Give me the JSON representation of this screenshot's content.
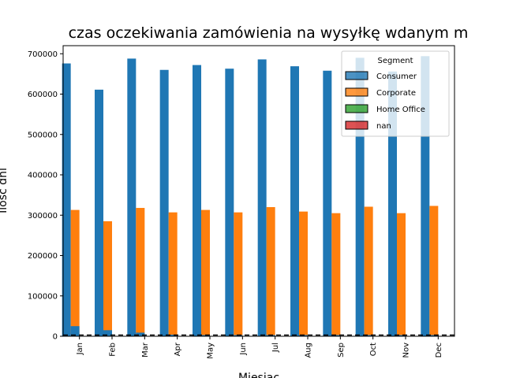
{
  "chart_data": {
    "type": "bar",
    "title": "czas oczekiwania zamówienia na wysyłkę wdanym m",
    "xlabel": "Miesiac",
    "ylabel": "Ilość dni",
    "categories": [
      "Jan",
      "Feb",
      "Mar",
      "Apr",
      "May",
      "Jun",
      "Jul",
      "Aug",
      "Sep",
      "Oct",
      "Nov",
      "Dec"
    ],
    "ylim": [
      0,
      720000
    ],
    "yticks": [
      0,
      100000,
      200000,
      300000,
      400000,
      500000,
      600000,
      700000
    ],
    "ytick_labels": [
      "0",
      "100000",
      "200000",
      "300000",
      "400000",
      "500000",
      "600000",
      "700000"
    ],
    "grid": false,
    "legend": {
      "title": "Segment",
      "placement": "top-right"
    },
    "series": [
      {
        "name": "Consumer",
        "color": "#1f77b4",
        "values": [
          676000,
          611000,
          688000,
          660000,
          672000,
          663000,
          686000,
          669000,
          658000,
          690000,
          656000,
          694000
        ]
      },
      {
        "name": "Corporate",
        "color": "#ff7f0e",
        "values": [
          313000,
          285000,
          318000,
          307000,
          313000,
          307000,
          320000,
          309000,
          305000,
          321000,
          305000,
          323000
        ]
      },
      {
        "name": "Home Office",
        "color": "#2ca02c",
        "values": [
          0,
          0,
          0,
          0,
          0,
          0,
          0,
          0,
          0,
          0,
          0,
          0
        ]
      },
      {
        "name": "nan",
        "color": "#d62728",
        "values": [
          0,
          0,
          0,
          0,
          0,
          0,
          0,
          0,
          0,
          0,
          0,
          0
        ]
      }
    ],
    "overlay_series": {
      "color": "#1f77b4",
      "values": [
        25000,
        15000,
        9000,
        4000,
        3000,
        3000,
        3000,
        3000,
        3000,
        3000,
        3000,
        3000
      ]
    }
  }
}
